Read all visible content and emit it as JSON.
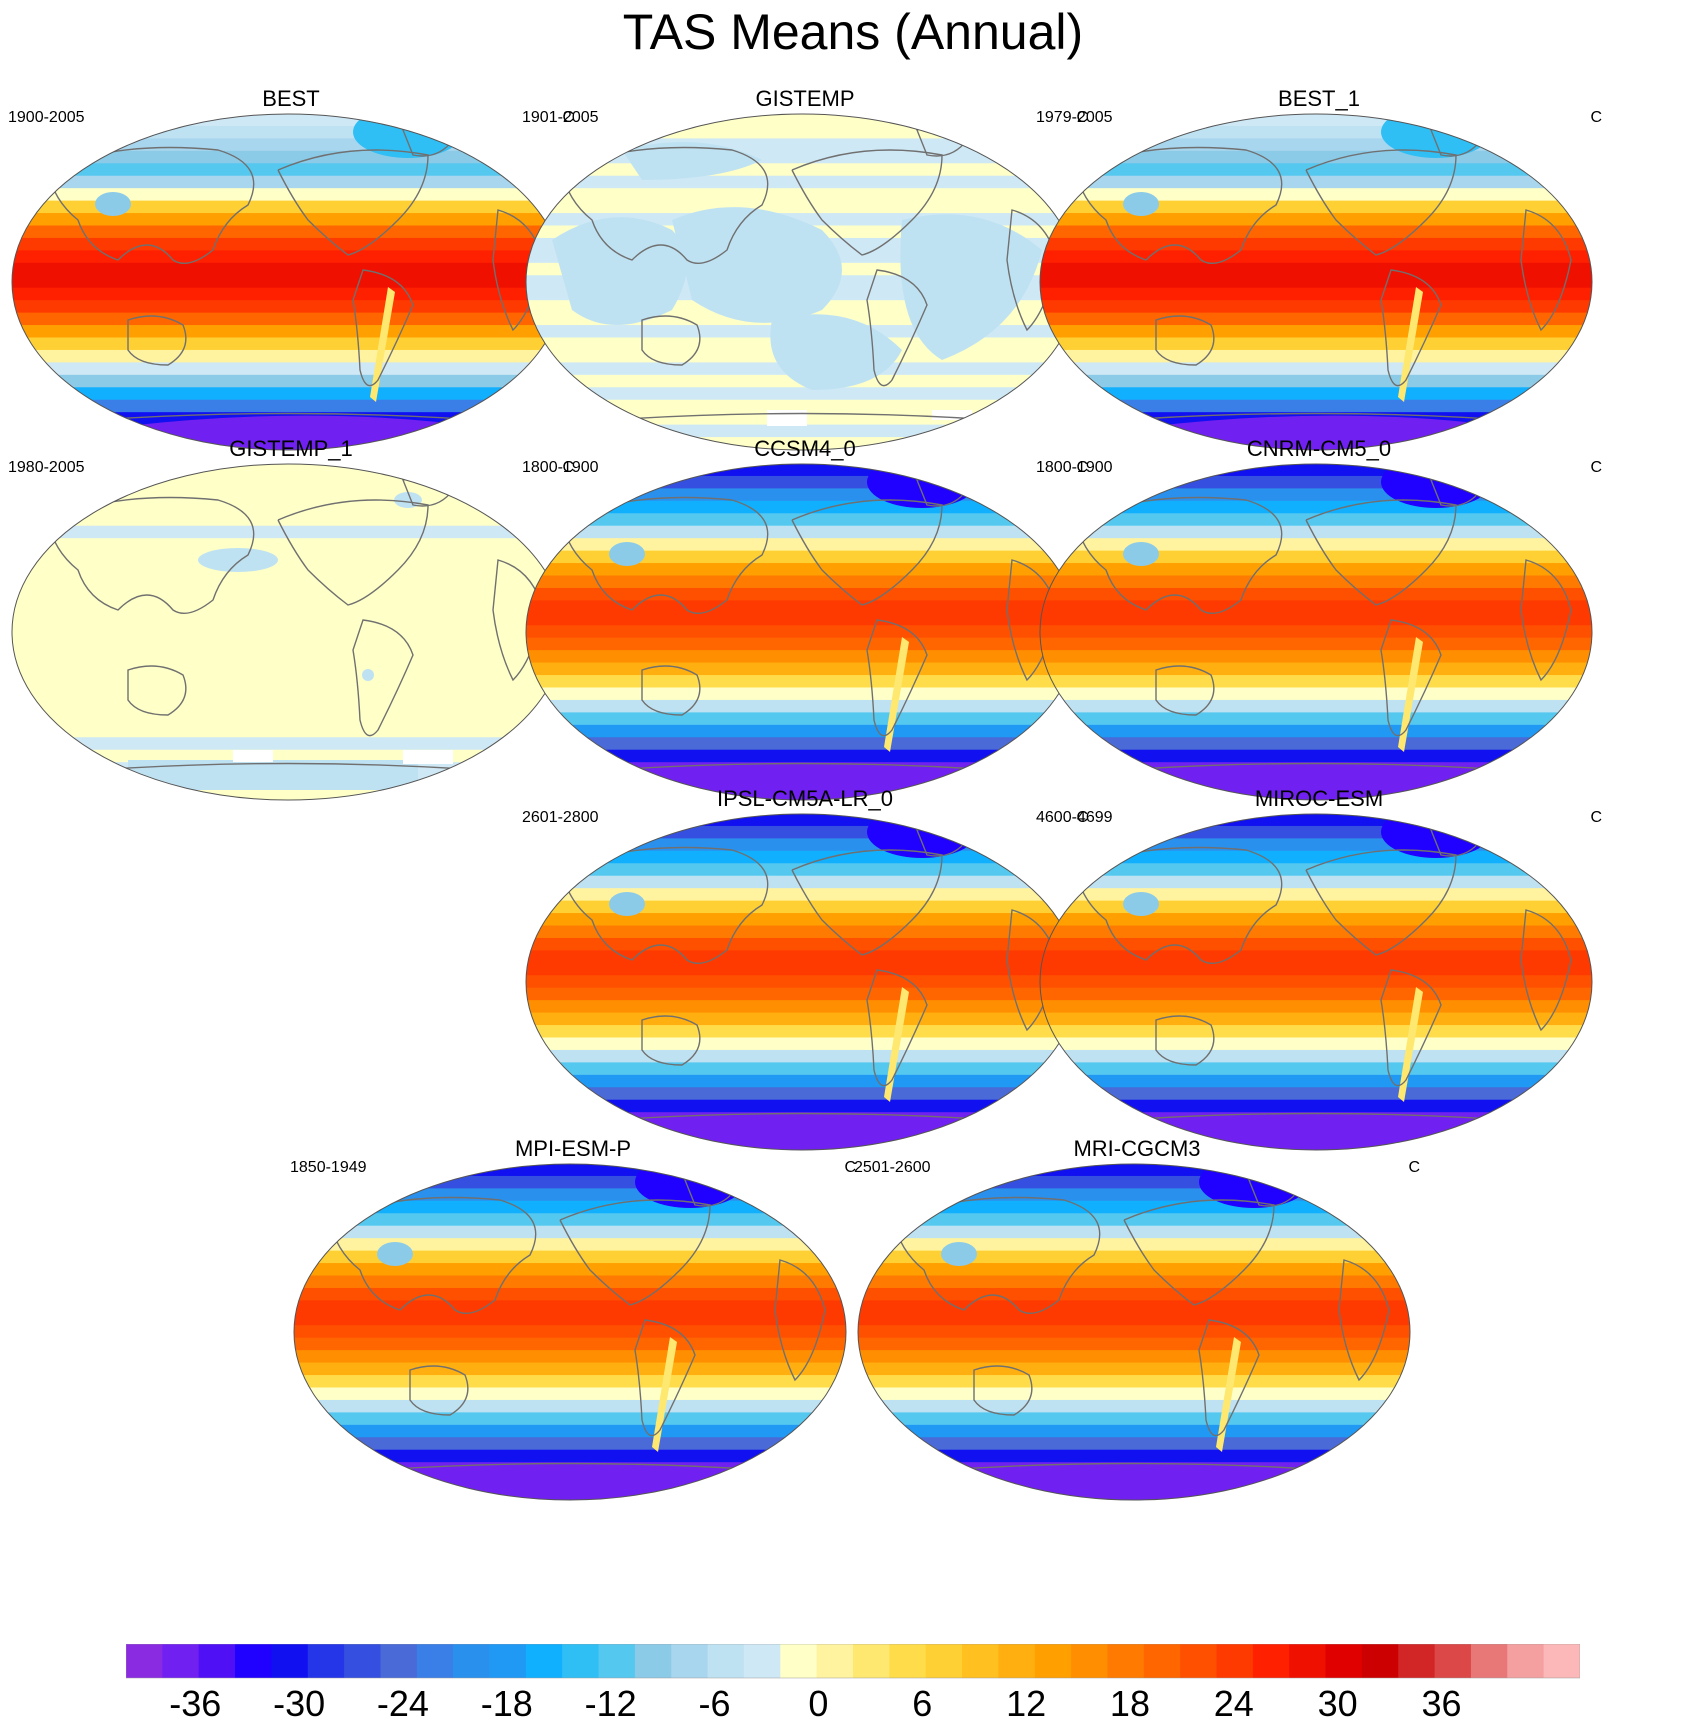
{
  "title": "TAS Means (Annual)",
  "chart_data": {
    "type": "heatmap",
    "title": "TAS Means (Annual)",
    "projection": "Robinson (Pacific-centered)",
    "variable": "TAS",
    "panels": [
      {
        "name": "BEST",
        "period": "1900-2005",
        "units": "C",
        "style": "obs",
        "row": 0,
        "col": 0
      },
      {
        "name": "GISTEMP",
        "period": "1901-2005",
        "units": "C",
        "style": "anomaly",
        "row": 0,
        "col": 1
      },
      {
        "name": "BEST_1",
        "period": "1979-2005",
        "units": "C",
        "style": "obs",
        "row": 0,
        "col": 2
      },
      {
        "name": "GISTEMP_1",
        "period": "1980-2005",
        "units": "C",
        "style": "anomaly-flat",
        "row": 1,
        "col": 0
      },
      {
        "name": "CCSM4_0",
        "period": "1800-1900",
        "units": "C",
        "style": "model",
        "row": 1,
        "col": 1
      },
      {
        "name": "CNRM-CM5_0",
        "period": "1800-1900",
        "units": "C",
        "style": "model",
        "row": 1,
        "col": 2
      },
      {
        "name": "IPSL-CM5A-LR_0",
        "period": "2601-2800",
        "units": "C",
        "style": "model",
        "row": 2,
        "col": 1
      },
      {
        "name": "MIROC-ESM",
        "period": "4600-4699",
        "units": "C",
        "style": "model",
        "row": 2,
        "col": 2
      },
      {
        "name": "MPI-ESM-P",
        "period": "1850-1949",
        "units": "C",
        "style": "model",
        "row": 3,
        "col": 0.5
      },
      {
        "name": "MRI-CGCM3",
        "period": "2501-2600",
        "units": "C",
        "style": "model",
        "row": 3,
        "col": 1.5
      }
    ],
    "colorbar": {
      "ticks": [
        -36,
        -30,
        -24,
        -18,
        -12,
        -6,
        0,
        6,
        12,
        18,
        24,
        30,
        36
      ],
      "tick_labels": [
        "-36",
        "-30",
        "-24",
        "-18",
        "-12",
        "-6",
        "0",
        "6",
        "12",
        "18",
        "24",
        "30",
        "36"
      ],
      "range": [
        -40,
        44
      ],
      "step": 2,
      "colors": [
        "#8a2be2",
        "#7020f0",
        "#5010f5",
        "#2000ff",
        "#1010f0",
        "#2535e8",
        "#3550e0",
        "#4a6ad8",
        "#3a7fe8",
        "#2a90ee",
        "#2099f5",
        "#10b0ff",
        "#30bff5",
        "#55c8f0",
        "#8ccbe8",
        "#a8d6ee",
        "#bfe2f3",
        "#cfe8f5",
        "#ffffc8",
        "#fff3a0",
        "#ffe870",
        "#ffdc4a",
        "#ffd033",
        "#ffc020",
        "#ffb010",
        "#ffa000",
        "#ff8f00",
        "#ff7a00",
        "#ff6600",
        "#ff5000",
        "#ff3a00",
        "#ff2000",
        "#f01000",
        "#e00000",
        "#cc0000",
        "#d22525",
        "#dc4848",
        "#e87878",
        "#f4a0a0",
        "#fcb8b8"
      ]
    },
    "grid": false
  }
}
